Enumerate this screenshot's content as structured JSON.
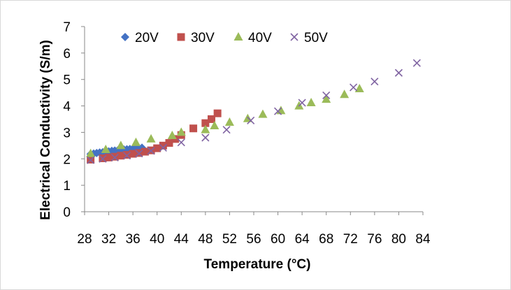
{
  "chart_data": {
    "type": "scatter",
    "title": "",
    "xlabel": "Temperature (°C)",
    "ylabel": "Electrical Conductivity (S/m)",
    "xlim": [
      28,
      84
    ],
    "ylim": [
      0,
      7
    ],
    "xticks": [
      "28",
      "32",
      "36",
      "40",
      "44",
      "48",
      "52",
      "56",
      "60",
      "64",
      "68",
      "72",
      "76",
      "80",
      "84"
    ],
    "yticks": [
      "0",
      "1",
      "2",
      "3",
      "4",
      "5",
      "6",
      "7"
    ],
    "grid": false,
    "legend_position": "top",
    "series": [
      {
        "name": "20V",
        "marker": "diamond",
        "color": "#4472c4",
        "points": [
          [
            29,
            2.18
          ],
          [
            29.5,
            2.2
          ],
          [
            30,
            2.22
          ],
          [
            30.5,
            2.24
          ],
          [
            31,
            2.25
          ],
          [
            31.5,
            2.27
          ],
          [
            32,
            2.28
          ],
          [
            32.5,
            2.3
          ],
          [
            33,
            2.31
          ],
          [
            33.5,
            2.32
          ],
          [
            34,
            2.34
          ],
          [
            34.5,
            2.35
          ],
          [
            35,
            2.36
          ],
          [
            35.5,
            2.37
          ],
          [
            36,
            2.38
          ],
          [
            36.5,
            2.4
          ],
          [
            37,
            2.41
          ],
          [
            37.5,
            2.42
          ]
        ]
      },
      {
        "name": "30V",
        "marker": "square",
        "color": "#c0504d",
        "points": [
          [
            29,
            1.97
          ],
          [
            31,
            2.02
          ],
          [
            32,
            2.05
          ],
          [
            33,
            2.08
          ],
          [
            34,
            2.12
          ],
          [
            35,
            2.15
          ],
          [
            36,
            2.19
          ],
          [
            37,
            2.22
          ],
          [
            38,
            2.27
          ],
          [
            39,
            2.32
          ],
          [
            40,
            2.4
          ],
          [
            41,
            2.5
          ],
          [
            42,
            2.6
          ],
          [
            43,
            2.75
          ],
          [
            44,
            2.9
          ],
          [
            46,
            3.15
          ],
          [
            48,
            3.35
          ],
          [
            49,
            3.5
          ],
          [
            50,
            3.72
          ]
        ]
      },
      {
        "name": "40V",
        "marker": "triangle",
        "color": "#9bbb59",
        "points": [
          [
            29,
            2.2
          ],
          [
            31.5,
            2.35
          ],
          [
            34,
            2.5
          ],
          [
            36.5,
            2.62
          ],
          [
            39,
            2.75
          ],
          [
            42.5,
            2.88
          ],
          [
            44,
            3.0
          ],
          [
            48,
            3.1
          ],
          [
            49.5,
            3.25
          ],
          [
            52,
            3.38
          ],
          [
            55,
            3.52
          ],
          [
            57.5,
            3.68
          ],
          [
            60.5,
            3.82
          ],
          [
            63.5,
            4.0
          ],
          [
            65.5,
            4.12
          ],
          [
            68,
            4.25
          ],
          [
            71,
            4.43
          ],
          [
            73.5,
            4.65
          ]
        ]
      },
      {
        "name": "50V",
        "marker": "x",
        "color": "#8064a2",
        "points": [
          [
            29,
            1.95
          ],
          [
            31,
            2.0
          ],
          [
            33,
            2.05
          ],
          [
            35,
            2.12
          ],
          [
            37,
            2.2
          ],
          [
            39,
            2.3
          ],
          [
            41,
            2.42
          ],
          [
            44,
            2.62
          ],
          [
            48,
            2.8
          ],
          [
            51.5,
            3.1
          ],
          [
            55.5,
            3.45
          ],
          [
            60,
            3.8
          ],
          [
            64,
            4.12
          ],
          [
            68,
            4.4
          ],
          [
            72.5,
            4.7
          ],
          [
            76,
            4.92
          ],
          [
            80,
            5.25
          ],
          [
            83,
            5.62
          ]
        ]
      }
    ]
  }
}
